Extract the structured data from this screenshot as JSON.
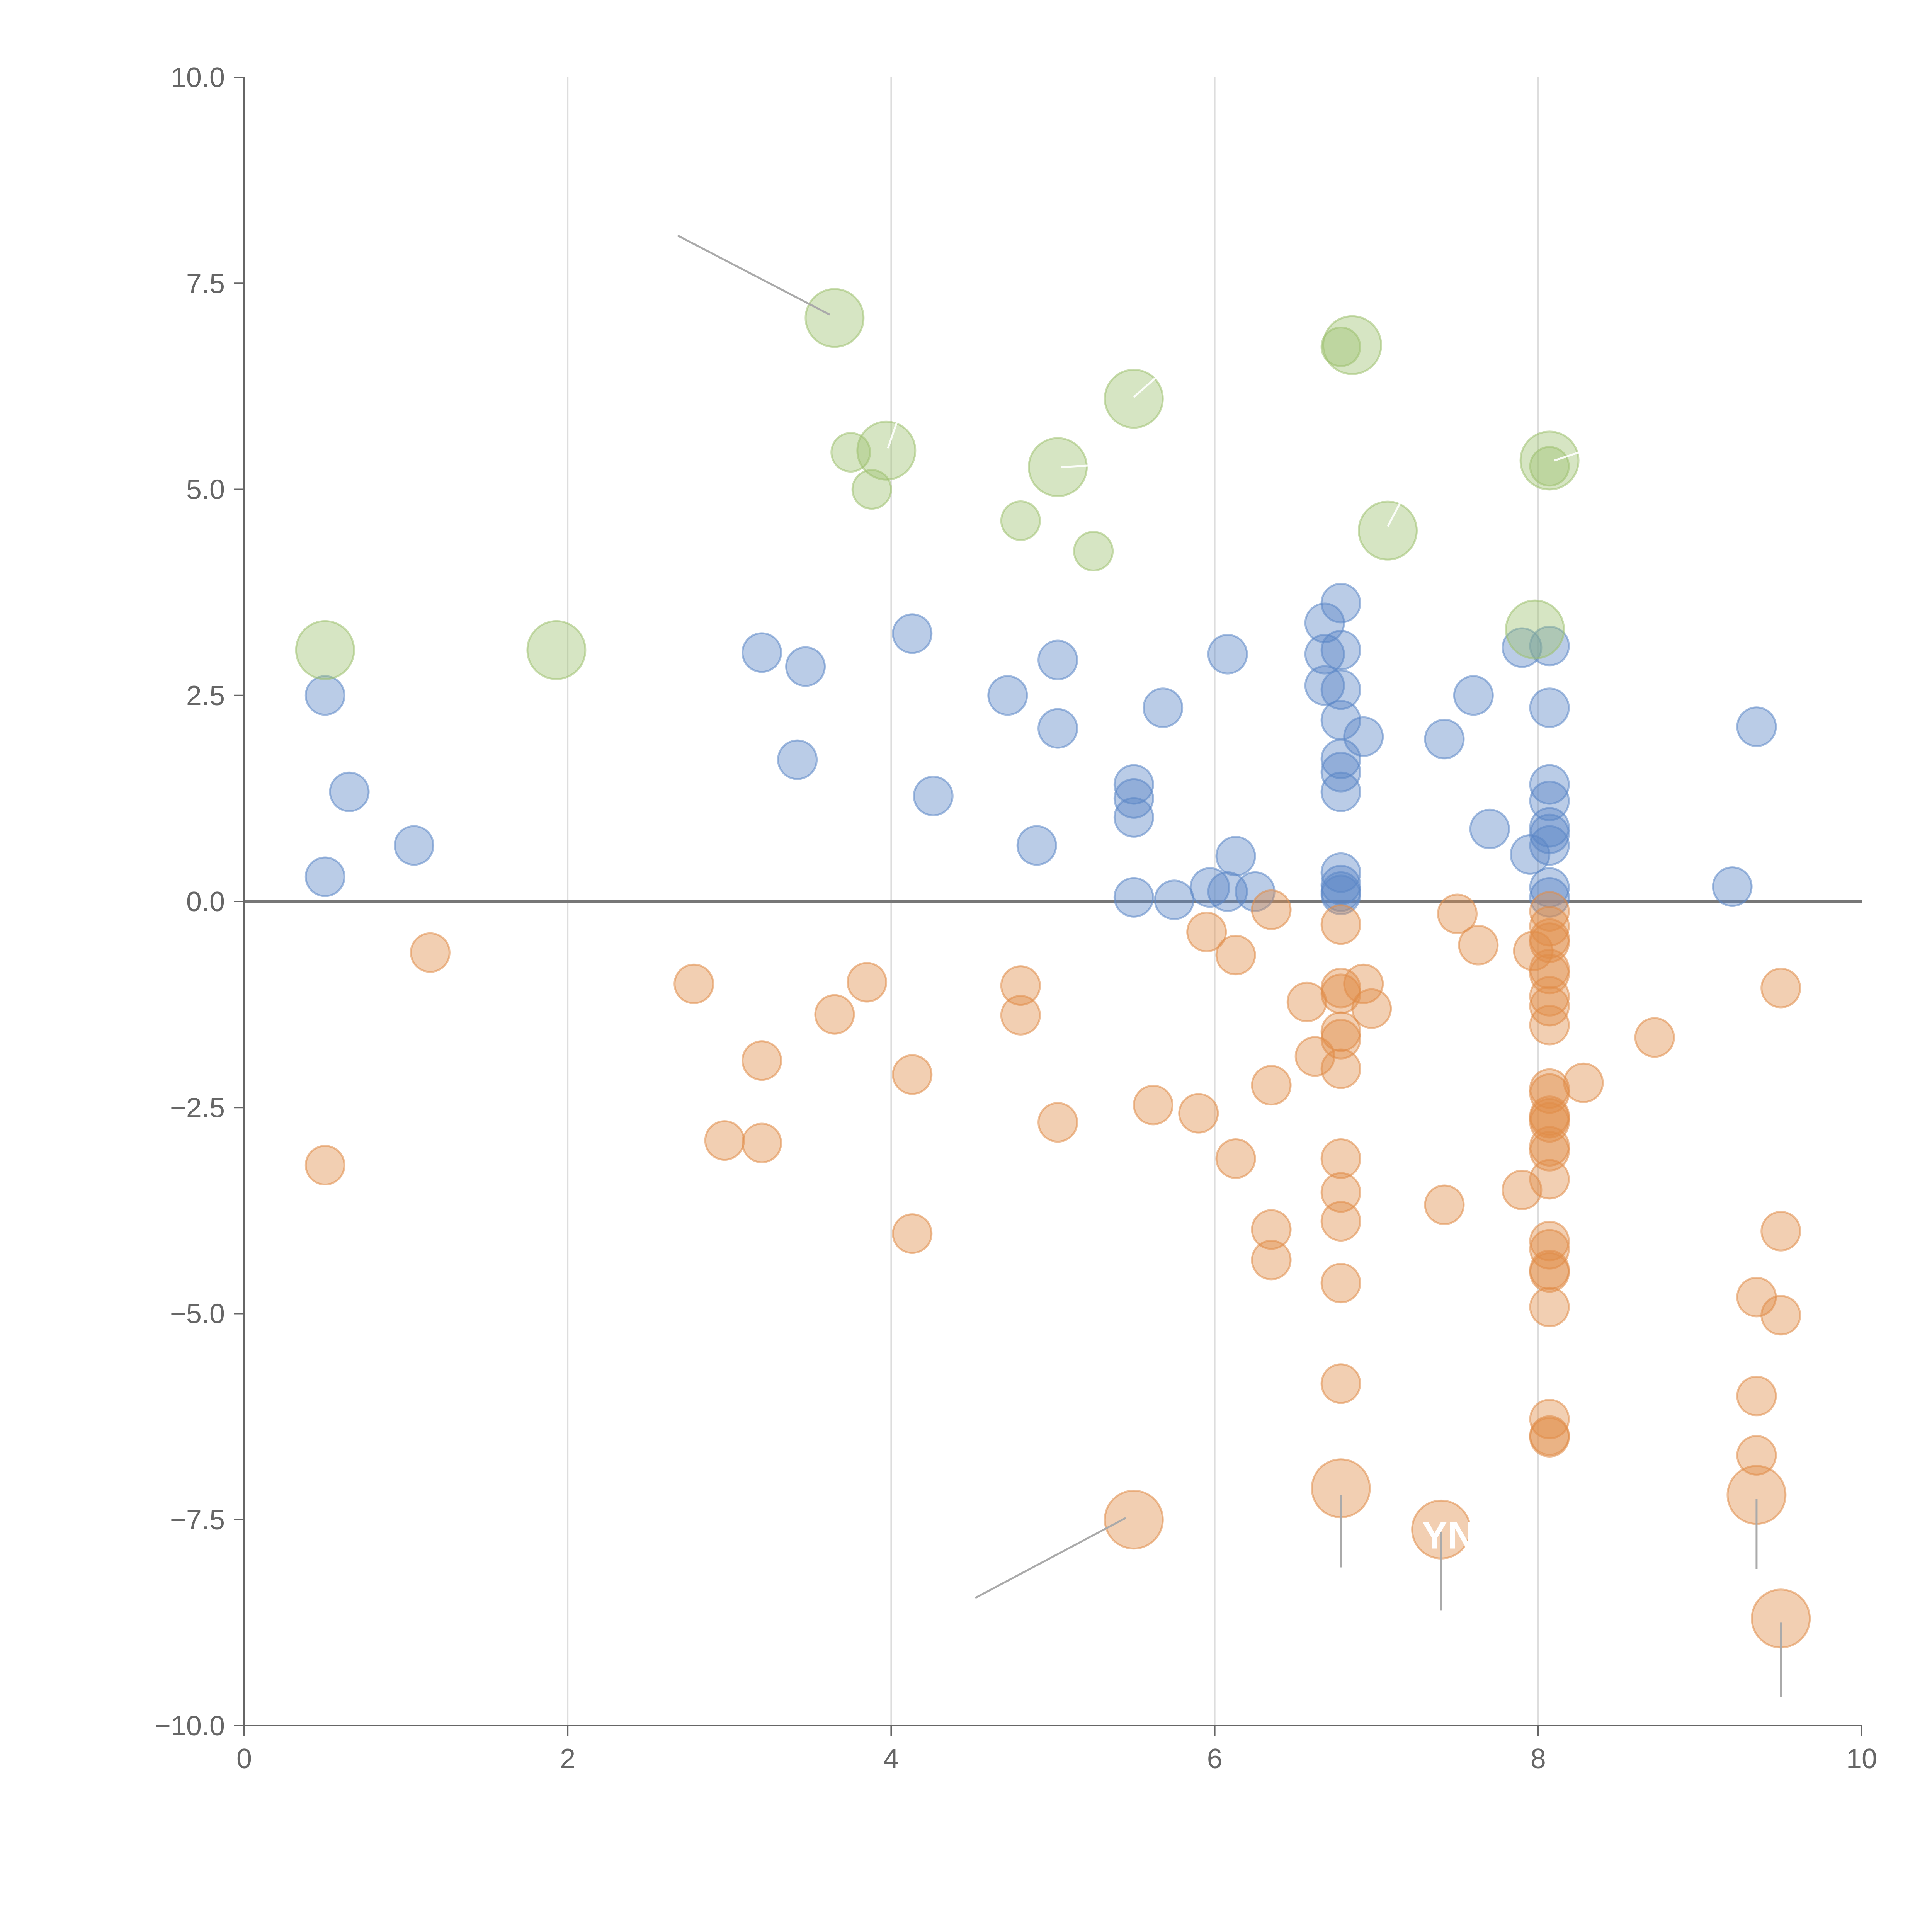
{
  "chart_data": {
    "type": "scatter",
    "title": "",
    "xlabel": "",
    "ylabel": "",
    "xlim": [
      0,
      10
    ],
    "ylim": [
      -10,
      10
    ],
    "x_ticks": [
      0,
      2,
      4,
      6,
      8,
      10
    ],
    "y_ticks": [
      10,
      7.5,
      5,
      2.5,
      0,
      -2.5,
      -5,
      -7.5,
      -10
    ],
    "x_tick_labels": [
      "0",
      "2",
      "4",
      "6",
      "8",
      "10"
    ],
    "y_tick_labels": [
      "10.0",
      "7.5",
      "5.0",
      "2.5",
      "0.0",
      "−2.5",
      "−5.0",
      "−7.5",
      "−10.0"
    ],
    "vertical_grid": [
      2,
      4,
      6,
      8
    ],
    "reference_line_y": 0,
    "colors": {
      "positive": "#5b86c6",
      "negative": "#e08c48",
      "highlight": "#9ec170",
      "axis": "#666666",
      "grid": "#dddddd",
      "zero_line": "#777777",
      "annotation_line": "#aaaaaa"
    },
    "series": [
      {
        "name": "positive",
        "size": 1,
        "points": [
          [
            0.5,
            2.5
          ],
          [
            0.65,
            1.33
          ],
          [
            1.05,
            0.68
          ],
          [
            0.5,
            0.3
          ],
          [
            3.2,
            3.02
          ],
          [
            3.47,
            2.85
          ],
          [
            3.42,
            1.72
          ],
          [
            4.13,
            3.25
          ],
          [
            4.26,
            1.28
          ],
          [
            4.72,
            2.5
          ],
          [
            4.9,
            0.68
          ],
          [
            5.03,
            2.93
          ],
          [
            5.03,
            2.1
          ],
          [
            5.5,
            1.42
          ],
          [
            5.5,
            1.25
          ],
          [
            5.5,
            1.02
          ],
          [
            5.5,
            0.05
          ],
          [
            5.68,
            2.35
          ],
          [
            5.75,
            0.02
          ],
          [
            5.97,
            0.17
          ],
          [
            6.08,
            3.0
          ],
          [
            6.13,
            0.55
          ],
          [
            6.08,
            0.12
          ],
          [
            6.25,
            0.12
          ],
          [
            6.68,
            3.38
          ],
          [
            6.68,
            3.0
          ],
          [
            6.68,
            2.62
          ],
          [
            6.78,
            3.62
          ],
          [
            6.78,
            3.05
          ],
          [
            6.78,
            2.57
          ],
          [
            6.78,
            2.2
          ],
          [
            6.78,
            1.73
          ],
          [
            6.78,
            1.57
          ],
          [
            6.78,
            1.33
          ],
          [
            6.78,
            0.35
          ],
          [
            6.78,
            0.2
          ],
          [
            6.78,
            0.12
          ],
          [
            6.78,
            0.08
          ],
          [
            6.92,
            2.0
          ],
          [
            7.42,
            1.97
          ],
          [
            7.6,
            2.5
          ],
          [
            7.7,
            0.88
          ],
          [
            7.9,
            3.08
          ],
          [
            7.95,
            0.57
          ],
          [
            8.07,
            3.1
          ],
          [
            8.07,
            2.35
          ],
          [
            8.07,
            1.42
          ],
          [
            8.07,
            1.22
          ],
          [
            8.07,
            0.9
          ],
          [
            8.07,
            0.82
          ],
          [
            8.07,
            0.68
          ],
          [
            8.07,
            0.17
          ],
          [
            8.07,
            0.05
          ],
          [
            9.2,
            0.18
          ],
          [
            9.35,
            2.12
          ]
        ]
      },
      {
        "name": "negative",
        "size": 1,
        "points": [
          [
            0.5,
            -3.2
          ],
          [
            1.15,
            -0.62
          ],
          [
            2.78,
            -1.0
          ],
          [
            2.97,
            -2.9
          ],
          [
            3.2,
            -1.93
          ],
          [
            3.2,
            -2.93
          ],
          [
            3.65,
            -1.37
          ],
          [
            3.85,
            -0.98
          ],
          [
            4.13,
            -2.1
          ],
          [
            4.13,
            -4.03
          ],
          [
            4.8,
            -1.02
          ],
          [
            4.8,
            -1.38
          ],
          [
            5.03,
            -2.68
          ],
          [
            5.62,
            -2.47
          ],
          [
            5.9,
            -2.57
          ],
          [
            5.95,
            -0.37
          ],
          [
            6.13,
            -0.65
          ],
          [
            6.13,
            -3.12
          ],
          [
            6.35,
            -0.1
          ],
          [
            6.35,
            -2.23
          ],
          [
            6.35,
            -3.98
          ],
          [
            6.35,
            -4.35
          ],
          [
            6.57,
            -1.22
          ],
          [
            6.62,
            -1.88
          ],
          [
            6.78,
            -0.28
          ],
          [
            6.78,
            -1.05
          ],
          [
            6.78,
            -1.12
          ],
          [
            6.78,
            -1.58
          ],
          [
            6.78,
            -1.67
          ],
          [
            6.78,
            -2.03
          ],
          [
            6.78,
            -3.12
          ],
          [
            6.78,
            -3.53
          ],
          [
            6.78,
            -3.88
          ],
          [
            6.78,
            -4.63
          ],
          [
            6.78,
            -5.85
          ],
          [
            6.92,
            -1.0
          ],
          [
            6.97,
            -1.3
          ],
          [
            7.42,
            -3.68
          ],
          [
            7.5,
            -0.15
          ],
          [
            7.63,
            -0.53
          ],
          [
            7.9,
            -3.5
          ],
          [
            7.97,
            -0.6
          ],
          [
            8.07,
            -0.12
          ],
          [
            8.07,
            -0.3
          ],
          [
            8.07,
            -0.45
          ],
          [
            8.07,
            -0.5
          ],
          [
            8.07,
            -0.82
          ],
          [
            8.07,
            -0.88
          ],
          [
            8.07,
            -1.15
          ],
          [
            8.07,
            -1.27
          ],
          [
            8.07,
            -1.5
          ],
          [
            8.07,
            -2.27
          ],
          [
            8.07,
            -2.33
          ],
          [
            8.07,
            -2.6
          ],
          [
            8.07,
            -2.63
          ],
          [
            8.07,
            -2.68
          ],
          [
            8.07,
            -2.97
          ],
          [
            8.07,
            -3.03
          ],
          [
            8.07,
            -3.37
          ],
          [
            8.07,
            -4.12
          ],
          [
            8.07,
            -4.22
          ],
          [
            8.07,
            -4.47
          ],
          [
            8.07,
            -4.5
          ],
          [
            8.07,
            -4.92
          ],
          [
            8.07,
            -6.28
          ],
          [
            8.07,
            -6.48
          ],
          [
            8.07,
            -6.5
          ],
          [
            8.28,
            -2.2
          ],
          [
            8.72,
            -1.65
          ],
          [
            9.35,
            -4.8
          ],
          [
            9.35,
            -6.0
          ],
          [
            9.35,
            -6.72
          ],
          [
            9.5,
            -1.05
          ],
          [
            9.5,
            -4.0
          ],
          [
            9.5,
            -5.02
          ]
        ]
      },
      {
        "name": "highlight",
        "size": 1,
        "points": [
          [
            3.75,
            5.45
          ],
          [
            3.88,
            5.0
          ],
          [
            4.8,
            4.62
          ],
          [
            5.25,
            4.25
          ],
          [
            6.78,
            6.73
          ],
          [
            8.07,
            5.28
          ]
        ]
      },
      {
        "name": "highlight-large",
        "color_key": "highlight",
        "size": 1.5,
        "points": [
          [
            0.5,
            3.05
          ],
          [
            1.93,
            3.05
          ],
          [
            3.65,
            7.08
          ],
          [
            3.97,
            5.47
          ],
          [
            5.03,
            5.27
          ],
          [
            5.5,
            6.1
          ],
          [
            6.85,
            6.75
          ],
          [
            7.07,
            4.5
          ],
          [
            8.07,
            5.35
          ],
          [
            7.98,
            3.3
          ]
        ]
      },
      {
        "name": "negative-large",
        "color_key": "negative",
        "size": 1.5,
        "points": [
          [
            5.5,
            -7.5
          ],
          [
            6.78,
            -7.12
          ],
          [
            7.4,
            -7.62
          ],
          [
            9.35,
            -7.2
          ],
          [
            9.5,
            -8.7
          ]
        ]
      }
    ],
    "annotations": [
      {
        "from": [
          3.62,
          7.12
        ],
        "to": [
          2.68,
          8.08
        ],
        "text": ""
      },
      {
        "from": [
          5.45,
          -7.48
        ],
        "to": [
          4.52,
          -8.45
        ],
        "text": ""
      },
      {
        "from": [
          6.78,
          -7.2
        ],
        "to": [
          6.78,
          -8.08
        ],
        "text": ""
      },
      {
        "from": [
          7.4,
          -7.65
        ],
        "to": [
          7.4,
          -8.6
        ],
        "text": ""
      },
      {
        "from": [
          9.35,
          -7.25
        ],
        "to": [
          9.35,
          -8.1
        ],
        "text": ""
      },
      {
        "from": [
          9.5,
          -8.75
        ],
        "to": [
          9.5,
          -9.65
        ],
        "text": ""
      },
      {
        "from": [
          3.98,
          5.5
        ],
        "to": [
          4.05,
          5.9
        ],
        "text": "",
        "light": true
      },
      {
        "from": [
          5.5,
          6.12
        ],
        "to": [
          5.72,
          6.5
        ],
        "text": "",
        "light": true
      },
      {
        "from": [
          5.05,
          5.27
        ],
        "to": [
          5.5,
          5.32
        ],
        "text": "",
        "light": true
      },
      {
        "from": [
          7.07,
          4.55
        ],
        "to": [
          7.15,
          4.85
        ],
        "text": "",
        "light": true
      },
      {
        "from": [
          8.1,
          5.35
        ],
        "to": [
          8.3,
          5.48
        ],
        "text": "",
        "light": true
      }
    ],
    "visible_labels": [
      {
        "text": "YN",
        "at": [
          7.28,
          -7.85
        ]
      }
    ]
  }
}
